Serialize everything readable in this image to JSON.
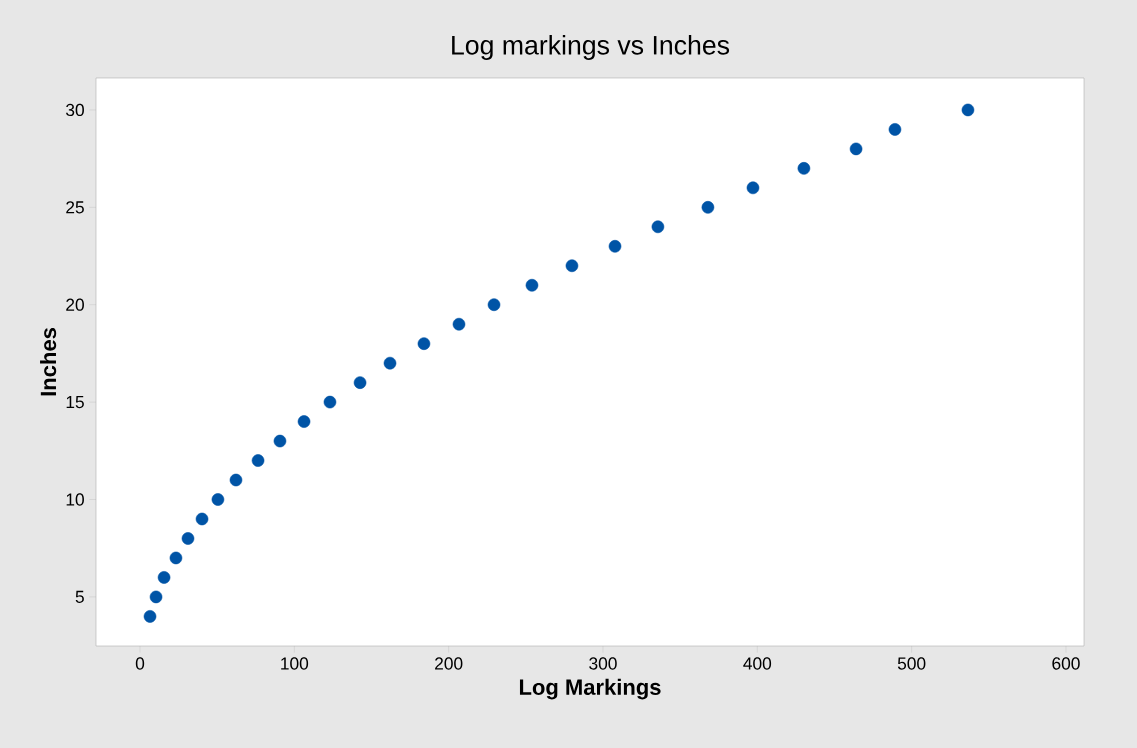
{
  "chart_data": {
    "type": "scatter",
    "title": "Log markings vs Inches",
    "xlabel": "Log Markings",
    "ylabel": "Inches",
    "x": [
      6.5,
      10.4,
      15.6,
      23.3,
      31.1,
      40.2,
      50.5,
      62.2,
      76.5,
      90.7,
      106.3,
      123.1,
      142.6,
      162,
      184,
      206.7,
      229.4,
      254,
      279.9,
      307.8,
      335.6,
      368,
      397.2,
      430.2,
      464,
      489.2,
      536.5
    ],
    "values": [
      4,
      5,
      6,
      7,
      8,
      9,
      10,
      11,
      12,
      13,
      14,
      15,
      16,
      17,
      18,
      19,
      20,
      21,
      22,
      23,
      24,
      25,
      26,
      27,
      28,
      29,
      30
    ],
    "color": "#0054a6",
    "marker": "circle",
    "xlim": [
      -28.5,
      611.7
    ],
    "ylim": [
      2.48,
      31.64
    ],
    "xticks": [
      0,
      100,
      200,
      300,
      400,
      500,
      600
    ],
    "yticks": [
      5,
      10,
      15,
      20,
      25,
      30
    ],
    "grid": false
  }
}
